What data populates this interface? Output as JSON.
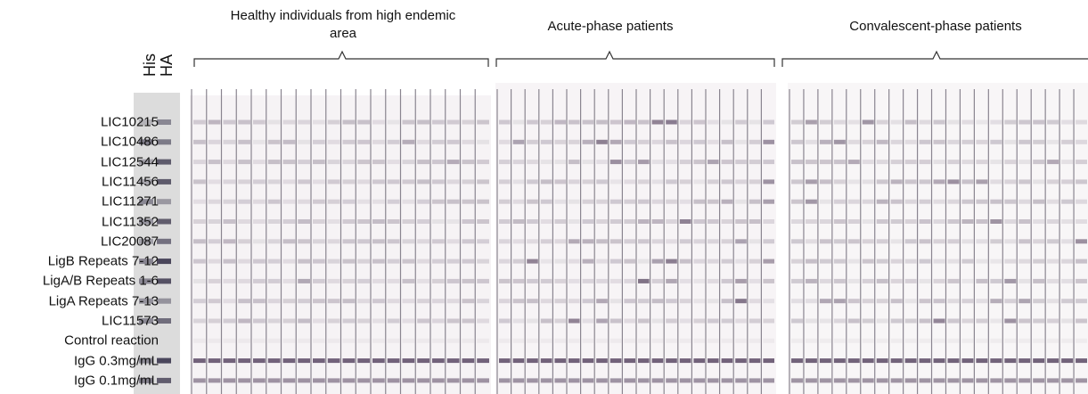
{
  "controls": [
    "His",
    "HA"
  ],
  "groups": [
    "Healthy individuals from high endemic area",
    "Acute-phase patients",
    "Convalescent-phase patients"
  ],
  "rows": [
    "LIC10215",
    "LIC10486",
    "LIC12544",
    "LIC11456",
    "LIC11271",
    "LIC11352",
    "LIC20087",
    "LigB Repeats 7-12",
    "LigA/B Repeats 1-6",
    "LigA Repeats 7-13",
    "LIC11573",
    "Control reaction",
    "IgG 0.3mg/mL",
    "IgG 0.1mg/mL"
  ]
}
